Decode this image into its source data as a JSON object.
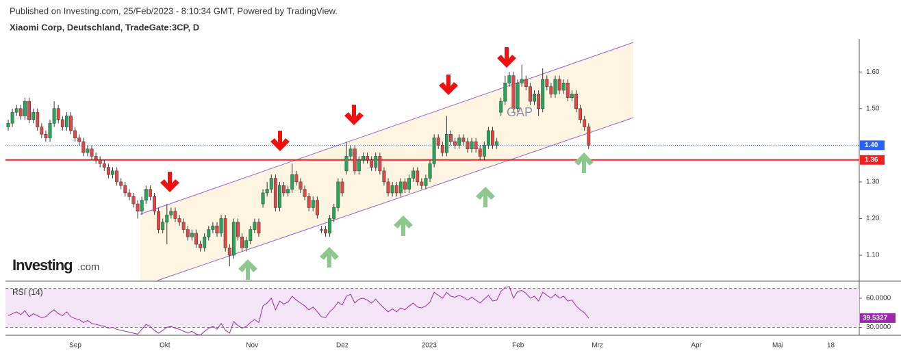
{
  "header": {
    "published": "Published on Investing.com, 25/Feb/2023 - 8:10:34 GMT, Powered by TradingView.",
    "logo": "Investing",
    "logo_suffix": ".com"
  },
  "chart_data": [
    {
      "type": "candlestick",
      "title": "Xiaomi Corp, Deutschland, TradeGate:3CP, D",
      "annotation": "GAP",
      "up_color": "#26a65b",
      "down_color": "#e04848",
      "candles": [
        [
          1.45,
          1.47,
          1.44,
          1.46
        ],
        [
          1.46,
          1.5,
          1.45,
          1.49
        ],
        [
          1.49,
          1.51,
          1.48,
          1.5
        ],
        [
          1.5,
          1.51,
          1.47,
          1.48
        ],
        [
          1.48,
          1.53,
          1.47,
          1.52
        ],
        [
          1.52,
          1.53,
          1.46,
          1.47
        ],
        [
          1.47,
          1.5,
          1.46,
          1.49
        ],
        [
          1.49,
          1.5,
          1.44,
          1.45
        ],
        [
          1.45,
          1.46,
          1.42,
          1.43
        ],
        [
          1.43,
          1.44,
          1.41,
          1.42
        ],
        [
          1.42,
          1.47,
          1.41,
          1.46
        ],
        [
          1.46,
          1.52,
          1.45,
          1.5
        ],
        [
          1.5,
          1.51,
          1.46,
          1.47
        ],
        [
          1.47,
          1.48,
          1.44,
          1.45
        ],
        [
          1.45,
          1.49,
          1.44,
          1.48
        ],
        [
          1.48,
          1.49,
          1.43,
          1.44
        ],
        [
          1.44,
          1.45,
          1.41,
          1.42
        ],
        [
          1.42,
          1.43,
          1.4,
          1.41
        ],
        [
          1.41,
          1.42,
          1.37,
          1.38
        ],
        [
          1.38,
          1.4,
          1.37,
          1.39
        ],
        [
          1.39,
          1.4,
          1.36,
          1.37
        ],
        [
          1.37,
          1.38,
          1.35,
          1.36
        ],
        [
          1.36,
          1.37,
          1.34,
          1.35
        ],
        [
          1.35,
          1.36,
          1.33,
          1.34
        ],
        [
          1.34,
          1.35,
          1.31,
          1.32
        ],
        [
          1.32,
          1.34,
          1.31,
          1.33
        ],
        [
          1.33,
          1.34,
          1.29,
          1.3
        ],
        [
          1.3,
          1.31,
          1.28,
          1.29
        ],
        [
          1.29,
          1.3,
          1.26,
          1.27
        ],
        [
          1.27,
          1.28,
          1.25,
          1.26
        ],
        [
          1.26,
          1.27,
          1.23,
          1.24
        ],
        [
          1.24,
          1.25,
          1.2,
          1.22
        ],
        [
          1.22,
          1.26,
          1.21,
          1.25
        ],
        [
          1.25,
          1.29,
          1.24,
          1.28
        ],
        [
          1.28,
          1.29,
          1.25,
          1.26
        ],
        [
          1.26,
          1.27,
          1.21,
          1.22
        ],
        [
          1.22,
          1.23,
          1.16,
          1.17
        ],
        [
          1.17,
          1.2,
          1.16,
          1.19
        ],
        [
          1.19,
          1.24,
          1.13,
          1.21
        ],
        [
          1.21,
          1.23,
          1.2,
          1.22
        ],
        [
          1.22,
          1.23,
          1.19,
          1.2
        ],
        [
          1.2,
          1.21,
          1.18,
          1.19
        ],
        [
          1.19,
          1.2,
          1.16,
          1.17
        ],
        [
          1.17,
          1.18,
          1.14,
          1.15
        ],
        [
          1.15,
          1.17,
          1.14,
          1.16
        ],
        [
          1.16,
          1.17,
          1.12,
          1.13
        ],
        [
          1.13,
          1.14,
          1.11,
          1.12
        ],
        [
          1.12,
          1.16,
          1.11,
          1.15
        ],
        [
          1.15,
          1.18,
          1.14,
          1.17
        ],
        [
          1.17,
          1.19,
          1.16,
          1.18
        ],
        [
          1.18,
          1.19,
          1.15,
          1.16
        ],
        [
          1.16,
          1.21,
          1.15,
          1.2
        ],
        [
          1.2,
          1.21,
          1.11,
          1.12
        ],
        [
          1.12,
          1.13,
          1.07,
          1.1
        ],
        [
          1.1,
          1.2,
          1.09,
          1.19
        ],
        [
          1.19,
          1.2,
          1.14,
          1.15
        ],
        [
          1.15,
          1.16,
          1.11,
          1.12
        ],
        [
          1.12,
          1.15,
          1.11,
          1.14
        ],
        [
          1.14,
          1.18,
          1.13,
          1.17
        ],
        [
          1.17,
          1.2,
          1.16,
          1.19
        ],
        [
          1.19,
          1.2,
          1.15,
          1.16
        ],
        [
          1.24,
          1.28,
          1.23,
          1.27
        ],
        [
          1.27,
          1.3,
          1.26,
          1.28
        ],
        [
          1.28,
          1.32,
          1.27,
          1.31
        ],
        [
          1.31,
          1.32,
          1.22,
          1.23
        ],
        [
          1.23,
          1.3,
          1.22,
          1.29
        ],
        [
          1.29,
          1.3,
          1.26,
          1.27
        ],
        [
          1.27,
          1.29,
          1.26,
          1.28
        ],
        [
          1.28,
          1.35,
          1.27,
          1.32
        ],
        [
          1.32,
          1.33,
          1.29,
          1.3
        ],
        [
          1.3,
          1.31,
          1.27,
          1.28
        ],
        [
          1.28,
          1.29,
          1.25,
          1.26
        ],
        [
          1.26,
          1.27,
          1.22,
          1.23
        ],
        [
          1.23,
          1.26,
          1.22,
          1.25
        ],
        [
          1.25,
          1.26,
          1.2,
          1.21
        ],
        [
          1.17,
          1.18,
          1.16,
          1.17
        ],
        [
          1.17,
          1.18,
          1.15,
          1.16
        ],
        [
          1.16,
          1.21,
          1.15,
          1.2
        ],
        [
          1.2,
          1.24,
          1.19,
          1.23
        ],
        [
          1.23,
          1.31,
          1.22,
          1.3
        ],
        [
          1.3,
          1.31,
          1.26,
          1.27
        ],
        [
          1.33,
          1.41,
          1.32,
          1.37
        ],
        [
          1.37,
          1.4,
          1.36,
          1.39
        ],
        [
          1.39,
          1.4,
          1.32,
          1.33
        ],
        [
          1.33,
          1.37,
          1.32,
          1.36
        ],
        [
          1.36,
          1.38,
          1.35,
          1.37
        ],
        [
          1.37,
          1.38,
          1.35,
          1.36
        ],
        [
          1.36,
          1.37,
          1.33,
          1.34
        ],
        [
          1.34,
          1.38,
          1.33,
          1.37
        ],
        [
          1.37,
          1.38,
          1.32,
          1.33
        ],
        [
          1.33,
          1.34,
          1.29,
          1.3
        ],
        [
          1.3,
          1.31,
          1.26,
          1.27
        ],
        [
          1.27,
          1.3,
          1.26,
          1.29
        ],
        [
          1.29,
          1.3,
          1.26,
          1.27
        ],
        [
          1.27,
          1.31,
          1.26,
          1.3
        ],
        [
          1.3,
          1.31,
          1.27,
          1.28
        ],
        [
          1.28,
          1.32,
          1.27,
          1.31
        ],
        [
          1.31,
          1.34,
          1.3,
          1.33
        ],
        [
          1.33,
          1.34,
          1.29,
          1.3
        ],
        [
          1.3,
          1.31,
          1.28,
          1.29
        ],
        [
          1.29,
          1.32,
          1.28,
          1.31
        ],
        [
          1.31,
          1.36,
          1.3,
          1.35
        ],
        [
          1.35,
          1.43,
          1.34,
          1.42
        ],
        [
          1.42,
          1.43,
          1.39,
          1.4
        ],
        [
          1.4,
          1.41,
          1.37,
          1.38
        ],
        [
          1.38,
          1.48,
          1.37,
          1.43
        ],
        [
          1.43,
          1.44,
          1.4,
          1.41
        ],
        [
          1.41,
          1.42,
          1.39,
          1.4
        ],
        [
          1.4,
          1.43,
          1.39,
          1.42
        ],
        [
          1.42,
          1.43,
          1.4,
          1.41
        ],
        [
          1.41,
          1.42,
          1.38,
          1.39
        ],
        [
          1.39,
          1.42,
          1.38,
          1.41
        ],
        [
          1.41,
          1.42,
          1.38,
          1.39
        ],
        [
          1.39,
          1.4,
          1.36,
          1.37
        ],
        [
          1.37,
          1.41,
          1.36,
          1.4
        ],
        [
          1.4,
          1.45,
          1.39,
          1.44
        ],
        [
          1.44,
          1.45,
          1.39,
          1.4
        ],
        [
          1.4,
          1.42,
          1.39,
          1.41
        ],
        [
          1.49,
          1.53,
          1.48,
          1.52
        ],
        [
          1.52,
          1.59,
          1.51,
          1.57
        ],
        [
          1.57,
          1.6,
          1.56,
          1.59
        ],
        [
          1.59,
          1.6,
          1.49,
          1.5
        ],
        [
          1.5,
          1.58,
          1.49,
          1.57
        ],
        [
          1.57,
          1.62,
          1.56,
          1.58
        ],
        [
          1.58,
          1.59,
          1.55,
          1.56
        ],
        [
          1.56,
          1.57,
          1.51,
          1.52
        ],
        [
          1.52,
          1.55,
          1.51,
          1.54
        ],
        [
          1.54,
          1.55,
          1.48,
          1.5
        ],
        [
          1.5,
          1.61,
          1.49,
          1.58
        ],
        [
          1.58,
          1.59,
          1.55,
          1.56
        ],
        [
          1.56,
          1.57,
          1.53,
          1.54
        ],
        [
          1.54,
          1.59,
          1.53,
          1.58
        ],
        [
          1.58,
          1.59,
          1.54,
          1.55
        ],
        [
          1.55,
          1.58,
          1.54,
          1.57
        ],
        [
          1.57,
          1.58,
          1.52,
          1.53
        ],
        [
          1.53,
          1.55,
          1.52,
          1.54
        ],
        [
          1.54,
          1.55,
          1.49,
          1.5
        ],
        [
          1.5,
          1.51,
          1.46,
          1.47
        ],
        [
          1.47,
          1.48,
          1.44,
          1.45
        ],
        [
          1.45,
          1.46,
          1.39,
          1.4
        ]
      ],
      "xlim": [
        -0.66,
        203.8
      ],
      "xticks": [
        {
          "value": 16.07,
          "label": "Sep"
        },
        {
          "value": 37.5,
          "label": "Okt"
        },
        {
          "value": 58.4,
          "label": "Nov"
        },
        {
          "value": 80,
          "label": "Dez"
        },
        {
          "value": 100.8,
          "label": "2023"
        },
        {
          "value": 122.1,
          "label": "Feb"
        },
        {
          "value": 141.1,
          "label": "Mrz"
        },
        {
          "value": 164.8,
          "label": "Apr"
        },
        {
          "value": 184.3,
          "label": "Mai"
        },
        {
          "value": 197,
          "label": "18"
        }
      ],
      "ylim": [
        1.031,
        1.69
      ],
      "yticks": [
        {
          "value": 1.1,
          "label": "1.10"
        },
        {
          "value": 1.2,
          "label": "1.20"
        },
        {
          "value": 1.3,
          "label": "1.30"
        },
        {
          "value": 1.5,
          "label": "1.50"
        },
        {
          "value": 1.6,
          "label": "1.60"
        }
      ],
      "levels": [
        {
          "value": 1.4,
          "label": "1.40",
          "color": "#2962ff",
          "style": "dotted"
        },
        {
          "value": 1.36,
          "label": "1.36",
          "color": "#f21f1f",
          "style": "solid"
        }
      ]
    },
    {
      "type": "line",
      "title": "RSI (14)",
      "color": "#9c27b0",
      "band": [
        30,
        70
      ],
      "band_color": "#f3e5f5",
      "values": [
        42,
        44,
        46,
        43,
        47,
        41,
        44,
        42,
        40,
        41,
        45,
        48,
        44,
        42,
        46,
        41,
        39,
        38,
        35,
        37,
        34,
        33,
        32,
        31,
        29,
        30,
        28,
        27,
        26,
        25,
        24,
        23,
        28,
        33,
        31,
        27,
        24,
        27,
        30,
        31,
        29,
        28,
        26,
        24,
        26,
        23,
        22,
        26,
        29,
        31,
        28,
        34,
        27,
        24,
        36,
        32,
        29,
        31,
        35,
        38,
        35,
        52,
        55,
        60,
        48,
        57,
        54,
        56,
        62,
        58,
        55,
        52,
        48,
        51,
        46,
        41,
        40,
        46,
        50,
        56,
        53,
        62,
        64,
        55,
        59,
        60,
        58,
        55,
        59,
        54,
        50,
        46,
        49,
        46,
        50,
        48,
        52,
        55,
        51,
        50,
        52,
        56,
        66,
        63,
        60,
        66,
        62,
        61,
        63,
        61,
        58,
        61,
        58,
        55,
        59,
        63,
        57,
        58,
        67,
        71,
        72,
        60,
        67,
        68,
        65,
        60,
        62,
        57,
        66,
        63,
        60,
        64,
        60,
        62,
        57,
        58,
        52,
        48,
        45,
        39.5327
      ],
      "ylim": [
        21.9,
        76.1
      ],
      "yticks": [
        {
          "value": 60,
          "label": "60.0000"
        },
        {
          "value": 30,
          "label": "30.0000"
        }
      ]
    }
  ]
}
